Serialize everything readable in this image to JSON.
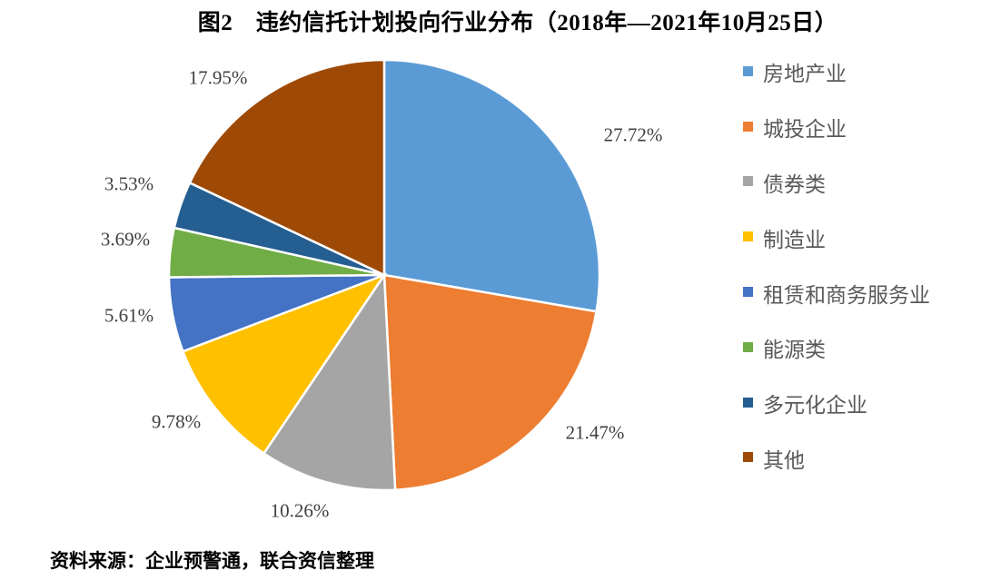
{
  "title": "图2　违约信托计划投向行业分布（2018年—2021年10月25日）",
  "source_note": "资料来源：企业预警通，联合资信整理",
  "chart_data": {
    "type": "pie",
    "figure_label": "图2",
    "title": "违约信托计划投向行业分布（2018年—2021年10月25日）",
    "unit": "percent",
    "start_angle_deg": 0,
    "direction": "clockwise",
    "legend_position": "right",
    "slice_border_color": "#ffffff",
    "slices": [
      {
        "label": "房地产业",
        "value": 27.72,
        "display": "27.72%",
        "color": "#5B9BD5"
      },
      {
        "label": "城投企业",
        "value": 21.47,
        "display": "21.47%",
        "color": "#ED7D31"
      },
      {
        "label": "债券类",
        "value": 10.26,
        "display": "10.26%",
        "color": "#A5A5A5"
      },
      {
        "label": "制造业",
        "value": 9.78,
        "display": "9.78%",
        "color": "#FFC000"
      },
      {
        "label": "租赁和商务服务业",
        "value": 5.61,
        "display": "5.61%",
        "color": "#4472C4"
      },
      {
        "label": "能源类",
        "value": 3.69,
        "display": "3.69%",
        "color": "#70AD47"
      },
      {
        "label": "多元化企业",
        "value": 3.53,
        "display": "3.53%",
        "color": "#255E91"
      },
      {
        "label": "其他",
        "value": 17.95,
        "display": "17.95%",
        "color": "#9E4A06"
      }
    ]
  }
}
